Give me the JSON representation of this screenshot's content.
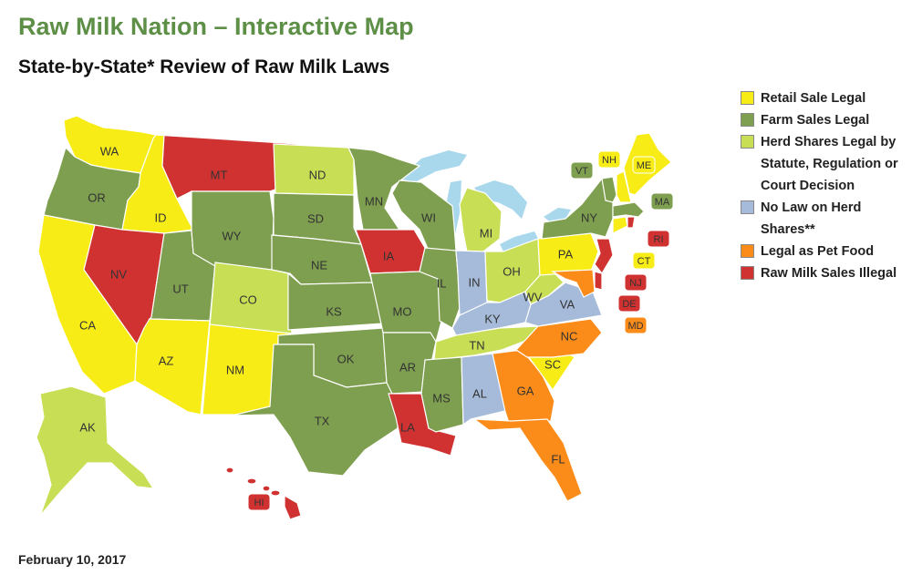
{
  "header": {
    "title": "Raw Milk Nation – Interactive Map",
    "subtitle": "State-by-State* Review of Raw Milk Laws",
    "date": "February 10, 2017"
  },
  "colors": {
    "retail": "#f7ec16",
    "farm": "#7e9f4f",
    "herd": "#c7de55",
    "nolaw": "#a5bbd9",
    "pet": "#fb8c1a",
    "illegal": "#cf3231",
    "lake": "#a9d8ec"
  },
  "legend": [
    {
      "key": "retail",
      "label": "Retail Sale Legal"
    },
    {
      "key": "farm",
      "label": "Farm Sales Legal"
    },
    {
      "key": "herd",
      "label": "Herd Shares Legal by Statute, Regulation or Court Decision"
    },
    {
      "key": "nolaw",
      "label": "No Law on Herd Shares**"
    },
    {
      "key": "pet",
      "label": "Legal as Pet Food"
    },
    {
      "key": "illegal",
      "label": "Raw Milk Sales Illegal"
    }
  ],
  "states": [
    {
      "abbr": "WA",
      "status": "retail"
    },
    {
      "abbr": "OR",
      "status": "farm"
    },
    {
      "abbr": "CA",
      "status": "retail"
    },
    {
      "abbr": "ID",
      "status": "retail"
    },
    {
      "abbr": "NV",
      "status": "illegal"
    },
    {
      "abbr": "AZ",
      "status": "retail"
    },
    {
      "abbr": "UT",
      "status": "farm"
    },
    {
      "abbr": "MT",
      "status": "illegal"
    },
    {
      "abbr": "WY",
      "status": "farm"
    },
    {
      "abbr": "CO",
      "status": "herd"
    },
    {
      "abbr": "NM",
      "status": "retail"
    },
    {
      "abbr": "ND",
      "status": "herd"
    },
    {
      "abbr": "SD",
      "status": "farm"
    },
    {
      "abbr": "NE",
      "status": "farm"
    },
    {
      "abbr": "KS",
      "status": "farm"
    },
    {
      "abbr": "OK",
      "status": "farm"
    },
    {
      "abbr": "TX",
      "status": "farm"
    },
    {
      "abbr": "MN",
      "status": "farm"
    },
    {
      "abbr": "IA",
      "status": "illegal"
    },
    {
      "abbr": "MO",
      "status": "farm"
    },
    {
      "abbr": "AR",
      "status": "farm"
    },
    {
      "abbr": "LA",
      "status": "illegal"
    },
    {
      "abbr": "WI",
      "status": "farm"
    },
    {
      "abbr": "IL",
      "status": "farm"
    },
    {
      "abbr": "MI",
      "status": "herd"
    },
    {
      "abbr": "IN",
      "status": "nolaw"
    },
    {
      "abbr": "OH",
      "status": "herd"
    },
    {
      "abbr": "KY",
      "status": "nolaw"
    },
    {
      "abbr": "TN",
      "status": "herd"
    },
    {
      "abbr": "MS",
      "status": "farm"
    },
    {
      "abbr": "AL",
      "status": "nolaw"
    },
    {
      "abbr": "GA",
      "status": "pet"
    },
    {
      "abbr": "FL",
      "status": "pet"
    },
    {
      "abbr": "SC",
      "status": "retail"
    },
    {
      "abbr": "NC",
      "status": "pet"
    },
    {
      "abbr": "VA",
      "status": "nolaw"
    },
    {
      "abbr": "WV",
      "status": "herd"
    },
    {
      "abbr": "PA",
      "status": "retail"
    },
    {
      "abbr": "NY",
      "status": "farm"
    },
    {
      "abbr": "VT",
      "status": "farm"
    },
    {
      "abbr": "NH",
      "status": "retail"
    },
    {
      "abbr": "ME",
      "status": "retail"
    },
    {
      "abbr": "MA",
      "status": "farm"
    },
    {
      "abbr": "CT",
      "status": "retail"
    },
    {
      "abbr": "RI",
      "status": "illegal"
    },
    {
      "abbr": "NJ",
      "status": "illegal"
    },
    {
      "abbr": "DE",
      "status": "illegal"
    },
    {
      "abbr": "MD",
      "status": "pet"
    },
    {
      "abbr": "AK",
      "status": "herd"
    },
    {
      "abbr": "HI",
      "status": "illegal"
    }
  ]
}
